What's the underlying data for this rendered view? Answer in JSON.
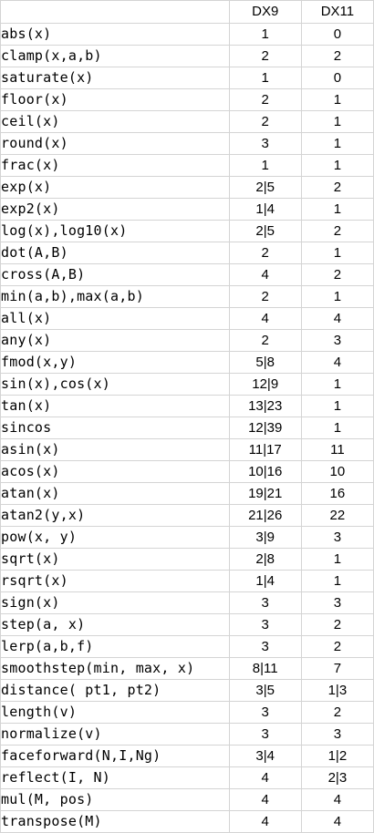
{
  "header": {
    "name": "",
    "dx9": "DX9",
    "dx11": "DX11"
  },
  "rows": [
    {
      "name": "abs(x)",
      "dx9": "1",
      "dx11": "0"
    },
    {
      "name": "clamp(x,a,b)",
      "dx9": "2",
      "dx11": "2"
    },
    {
      "name": "saturate(x)",
      "dx9": "1",
      "dx11": "0"
    },
    {
      "name": "floor(x)",
      "dx9": "2",
      "dx11": "1"
    },
    {
      "name": "ceil(x)",
      "dx9": "2",
      "dx11": "1"
    },
    {
      "name": "round(x)",
      "dx9": "3",
      "dx11": "1"
    },
    {
      "name": "frac(x)",
      "dx9": "1",
      "dx11": "1"
    },
    {
      "name": "exp(x)",
      "dx9": "2|5",
      "dx11": "2"
    },
    {
      "name": "exp2(x)",
      "dx9": "1|4",
      "dx11": "1"
    },
    {
      "name": "log(x),log10(x)",
      "dx9": "2|5",
      "dx11": "2"
    },
    {
      "name": "dot(A,B)",
      "dx9": "2",
      "dx11": "1"
    },
    {
      "name": "cross(A,B)",
      "dx9": "4",
      "dx11": "2"
    },
    {
      "name": "min(a,b),max(a,b)",
      "dx9": "2",
      "dx11": "1"
    },
    {
      "name": "all(x)",
      "dx9": "4",
      "dx11": "4"
    },
    {
      "name": "any(x)",
      "dx9": "2",
      "dx11": "3"
    },
    {
      "name": "fmod(x,y)",
      "dx9": "5|8",
      "dx11": "4"
    },
    {
      "name": "sin(x),cos(x)",
      "dx9": "12|9",
      "dx11": "1"
    },
    {
      "name": "tan(x)",
      "dx9": "13|23",
      "dx11": "1"
    },
    {
      "name": "sincos",
      "dx9": "12|39",
      "dx11": "1"
    },
    {
      "name": "asin(x)",
      "dx9": "11|17",
      "dx11": "11"
    },
    {
      "name": "acos(x)",
      "dx9": "10|16",
      "dx11": "10"
    },
    {
      "name": "atan(x)",
      "dx9": "19|21",
      "dx11": "16"
    },
    {
      "name": "atan2(y,x)",
      "dx9": "21|26",
      "dx11": "22"
    },
    {
      "name": "pow(x, y)",
      "dx9": "3|9",
      "dx11": "3"
    },
    {
      "name": "sqrt(x)",
      "dx9": "2|8",
      "dx11": "1"
    },
    {
      "name": "rsqrt(x)",
      "dx9": "1|4",
      "dx11": "1"
    },
    {
      "name": "sign(x)",
      "dx9": "3",
      "dx11": "3"
    },
    {
      "name": "step(a, x)",
      "dx9": "3",
      "dx11": "2"
    },
    {
      "name": "lerp(a,b,f)",
      "dx9": "3",
      "dx11": "2"
    },
    {
      "name": "smoothstep(min, max, x)",
      "dx9": "8|11",
      "dx11": "7"
    },
    {
      "name": "distance( pt1, pt2)",
      "dx9": "3|5",
      "dx11": "1|3"
    },
    {
      "name": "length(v)",
      "dx9": "3",
      "dx11": "2"
    },
    {
      "name": "normalize(v)",
      "dx9": "3",
      "dx11": "3"
    },
    {
      "name": "faceforward(N,I,Ng)",
      "dx9": "3|4",
      "dx11": "1|2"
    },
    {
      "name": "reflect(I, N)",
      "dx9": "4",
      "dx11": "2|3"
    },
    {
      "name": "mul(M, pos)",
      "dx9": "4",
      "dx11": "4"
    },
    {
      "name": "transpose(M)",
      "dx9": "4",
      "dx11": "4"
    }
  ]
}
